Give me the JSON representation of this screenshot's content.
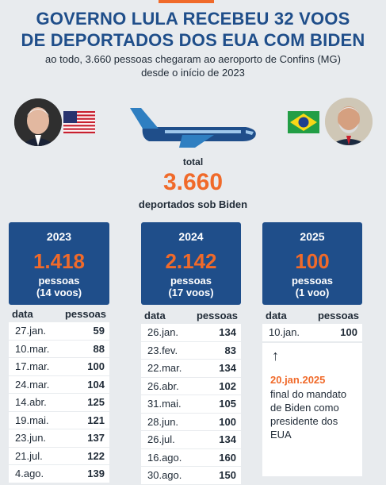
{
  "header": {
    "title_line1": "GOVERNO LULA RECEBEU 32 VOOS",
    "title_line2": "DE DEPORTADOS DOS EUA COM BIDEN",
    "subtitle_line1": "ao todo, 3.660 pessoas chegaram ao aeroporto de Confins (MG)",
    "subtitle_line2": "desde o início de 2023"
  },
  "total": {
    "label": "total",
    "value": "3.660",
    "sub": "deportados sob Biden"
  },
  "cards": [
    {
      "year": "2023",
      "value": "1.418",
      "label": "pessoas",
      "voos": "(14 voos)"
    },
    {
      "year": "2024",
      "value": "2.142",
      "label": "pessoas",
      "voos": "(17 voos)"
    },
    {
      "year": "2025",
      "value": "100",
      "label": "pessoas",
      "voos": "(1 voo)"
    }
  ],
  "table_headers": {
    "date": "data",
    "people": "pessoas"
  },
  "tables": [
    [
      [
        "27.jan.",
        "59"
      ],
      [
        "10.mar.",
        "88"
      ],
      [
        "17.mar.",
        "100"
      ],
      [
        "24.mar.",
        "104"
      ],
      [
        "14.abr.",
        "125"
      ],
      [
        "19.mai.",
        "121"
      ],
      [
        "23.jun.",
        "137"
      ],
      [
        "21.jul.",
        "122"
      ],
      [
        "4.ago.",
        "139"
      ]
    ],
    [
      [
        "26.jan.",
        "134"
      ],
      [
        "23.fev.",
        "83"
      ],
      [
        "22.mar.",
        "134"
      ],
      [
        "26.abr.",
        "102"
      ],
      [
        "31.mai.",
        "105"
      ],
      [
        "28.jun.",
        "100"
      ],
      [
        "26.jul.",
        "134"
      ],
      [
        "16.ago.",
        "160"
      ],
      [
        "30.ago.",
        "150"
      ]
    ],
    [
      [
        "10.jan.",
        "100"
      ]
    ]
  ],
  "note": {
    "date": "20.jan.2025",
    "text": "final do mandato de Biden como presidente dos EUA"
  },
  "colors": {
    "navy": "#1f4e8a",
    "orange": "#f06a2a",
    "background": "#e8ebee"
  }
}
